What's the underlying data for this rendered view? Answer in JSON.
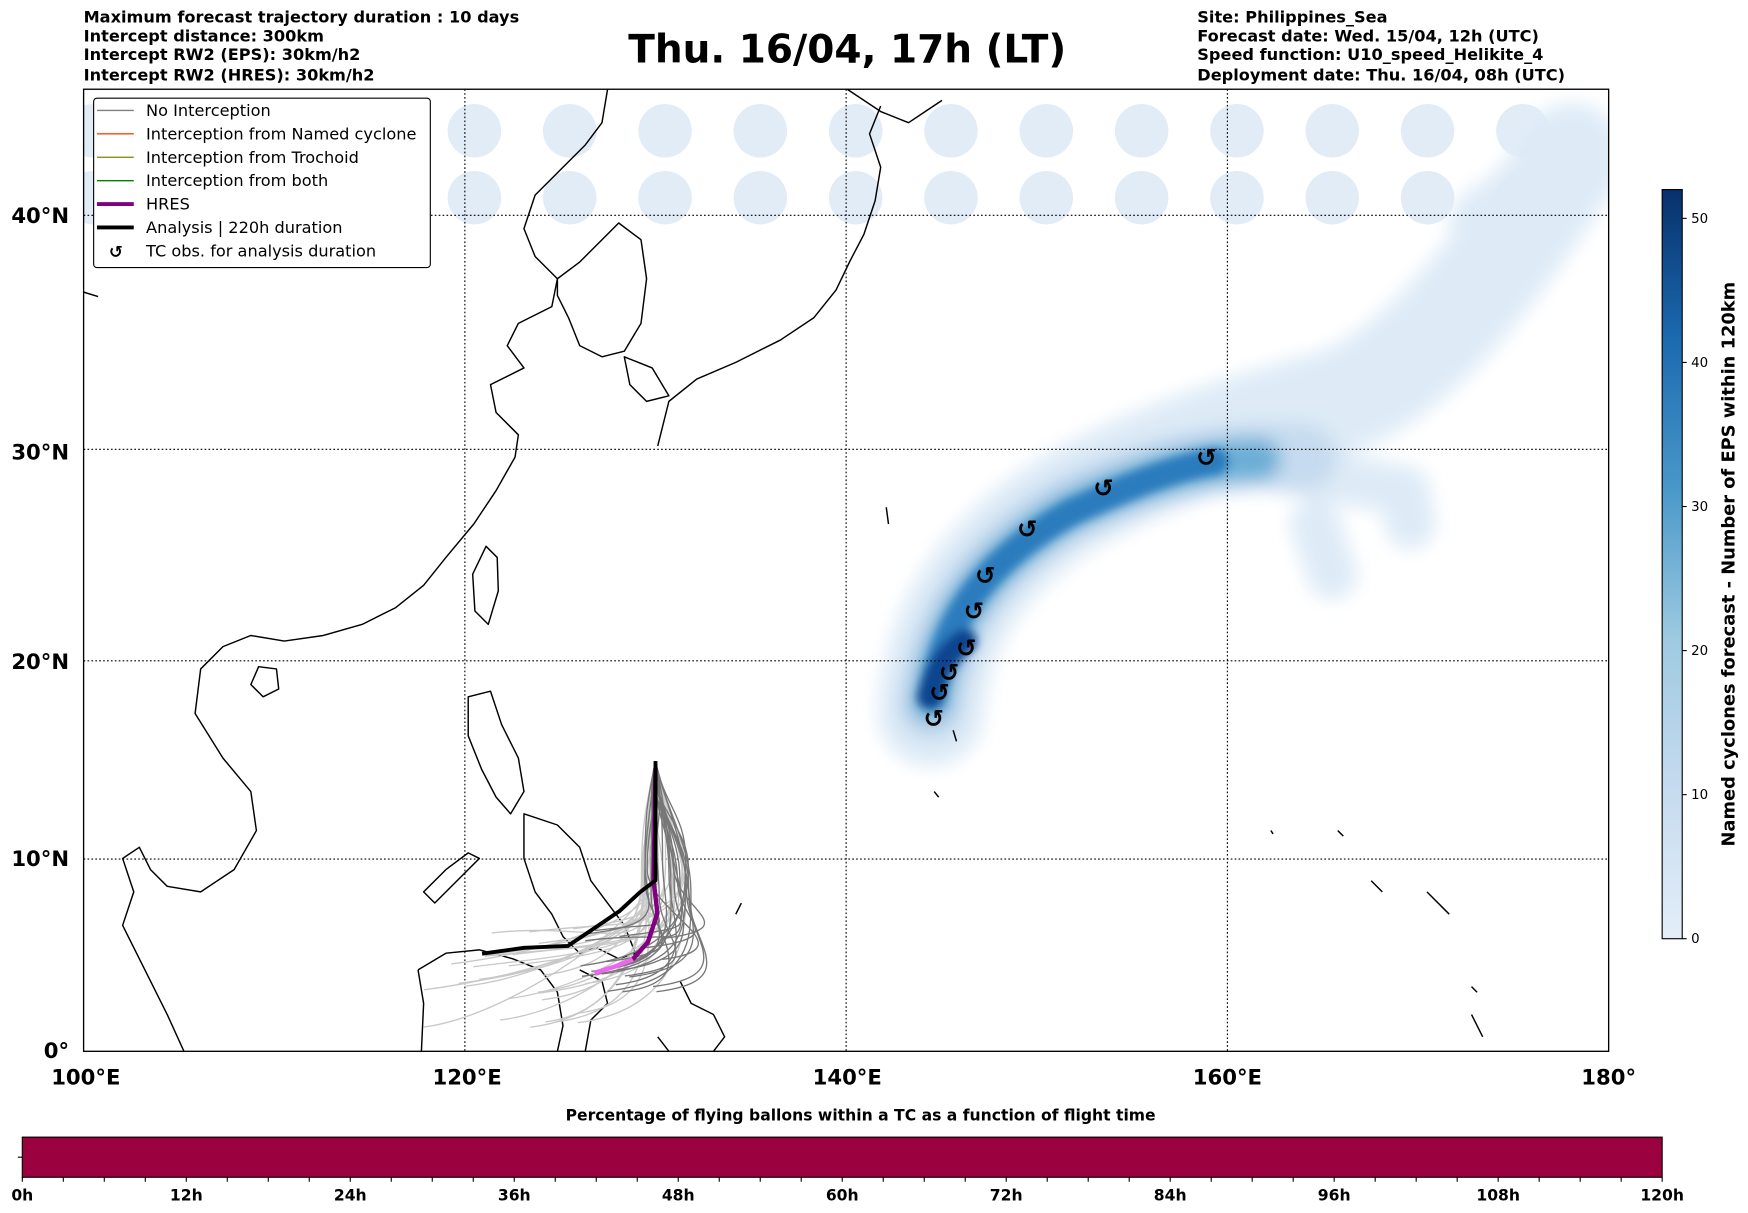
{
  "header_left": [
    "Maximum forecast trajectory duration : 10 days",
    "Intercept distance: 300km",
    "Intercept RW2 (EPS):  30km/h2",
    "Intercept RW2 (HRES): 30km/h2"
  ],
  "title": "Thu. 16/04, 17h (LT)",
  "header_right": [
    "Site: Philippines_Sea",
    "Forecast date: Wed. 15/04, 12h (UTC)",
    "Speed function: U10_speed_Helikite_4",
    "Deployment date: Thu. 16/04, 08h (UTC)"
  ],
  "legend": [
    {
      "label": "No Interception",
      "color": "#7f7f7f"
    },
    {
      "label": "Interception from Named cyclone",
      "color": "#ff4500"
    },
    {
      "label": "Interception from Trochoid",
      "color": "#808000"
    },
    {
      "label": "Interception from both",
      "color": "#008000"
    },
    {
      "label": "HRES",
      "color": "#800080"
    },
    {
      "label": "Analysis | 220h duration",
      "color": "#000000"
    },
    {
      "label": "TC obs. for analysis duration",
      "symbol": "↺"
    }
  ],
  "chart_data": [
    {
      "type": "map",
      "lon_range": [
        100,
        180
      ],
      "lat_range": [
        0,
        45.5
      ],
      "x_ticks": [
        "100°E",
        "120°E",
        "140°E",
        "160°E",
        "180°"
      ],
      "x_tick_values": [
        100,
        120,
        140,
        160,
        180
      ],
      "y_ticks": [
        "0°",
        "10°N",
        "20°N",
        "30°N",
        "40°N"
      ],
      "y_tick_values": [
        0,
        10,
        20,
        30,
        40
      ],
      "grid": true,
      "legend_position": "top-left",
      "tc_obs": [
        {
          "lon": 144.6,
          "lat": 17.1
        },
        {
          "lon": 144.9,
          "lat": 18.4
        },
        {
          "lon": 145.4,
          "lat": 19.4
        },
        {
          "lon": 146.3,
          "lat": 20.6
        },
        {
          "lon": 146.7,
          "lat": 22.4
        },
        {
          "lon": 147.3,
          "lat": 24.1
        },
        {
          "lon": 149.5,
          "lat": 26.3
        },
        {
          "lon": 153.5,
          "lat": 28.2
        },
        {
          "lon": 158.9,
          "lat": 29.6
        }
      ],
      "analysis_track": [
        [
          130.0,
          15.0
        ],
        [
          130.0,
          8.9
        ],
        [
          129.2,
          8.3
        ],
        [
          128.1,
          7.3
        ],
        [
          126.6,
          6.3
        ],
        [
          125.4,
          5.5
        ],
        [
          123.1,
          5.4
        ],
        [
          120.9,
          5.1
        ]
      ],
      "hres_track": [
        [
          130.0,
          14.6
        ],
        [
          129.9,
          8.9
        ],
        [
          130.1,
          7.2
        ],
        [
          129.6,
          5.7
        ],
        [
          128.8,
          4.8
        ],
        [
          127.8,
          4.4
        ],
        [
          126.8,
          4.1
        ]
      ],
      "colorbar": {
        "label": "Named cyclones forecast - Number of EPS within 120km",
        "range": [
          0,
          52
        ],
        "ticks": [
          "0",
          "10",
          "20",
          "30",
          "40",
          "50"
        ],
        "tick_values": [
          0,
          10,
          20,
          30,
          40,
          50
        ]
      }
    },
    {
      "type": "bar",
      "title": "Percentage of flying ballons within a TC as a function of flight time",
      "x_ticks": [
        "0h",
        "12h",
        "24h",
        "36h",
        "48h",
        "60h",
        "72h",
        "84h",
        "96h",
        "108h",
        "120h"
      ],
      "x_range": [
        0,
        120
      ],
      "fill_color": "#9b003f"
    }
  ]
}
